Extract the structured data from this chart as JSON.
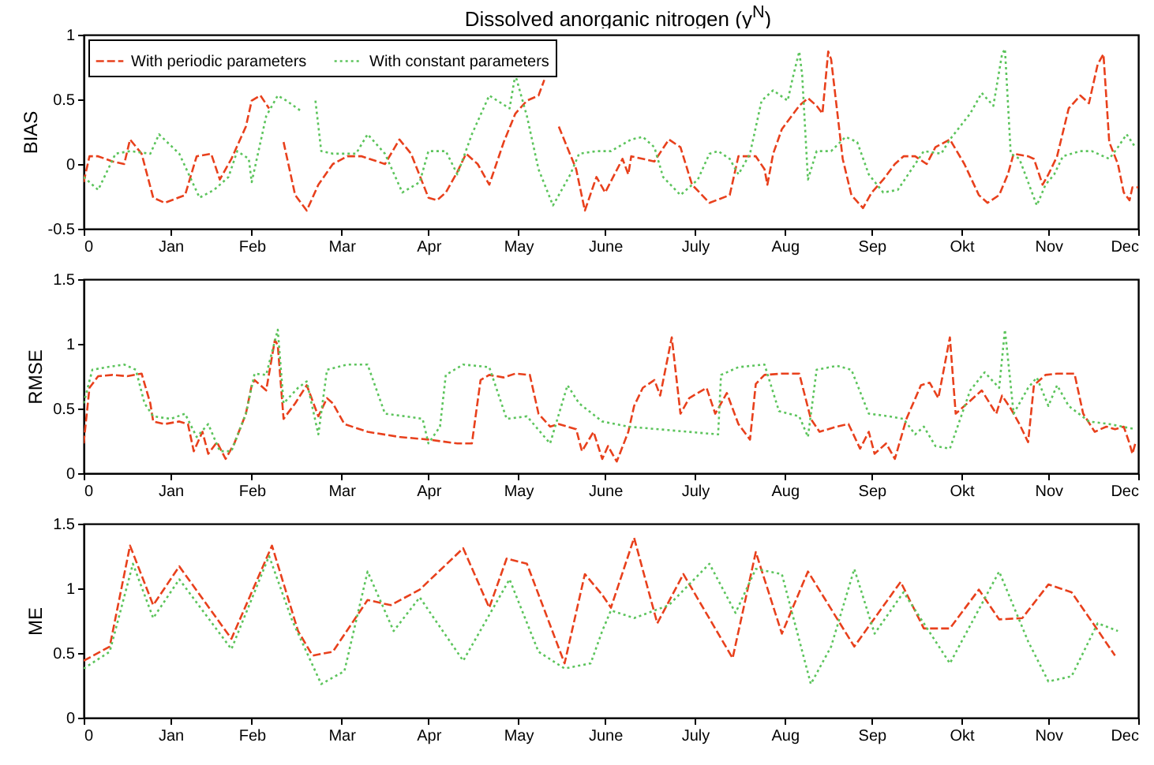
{
  "chart_data": [
    {
      "type": "line",
      "title": "Dissolved anorganic nitrogen (y$^{N}$)",
      "ylabel": "BIAS",
      "xlim": [
        "--01-01",
        "--12-31"
      ],
      "ylim": [
        -0.5,
        1
      ],
      "yticks": [
        -0.5,
        0,
        0.5,
        1
      ],
      "xticks": [
        {
          "value": "--01-01",
          "label": "0"
        },
        {
          "value": "--01-31",
          "label": "Jan"
        },
        {
          "value": "--02-28",
          "label": "Feb"
        },
        {
          "value": "--03-31",
          "label": "Mar"
        },
        {
          "value": "--04-30",
          "label": "Apr"
        },
        {
          "value": "--05-31",
          "label": "May"
        },
        {
          "value": "--06-30",
          "label": "June"
        },
        {
          "value": "--07-31",
          "label": "July"
        },
        {
          "value": "--08-31",
          "label": "Aug"
        },
        {
          "value": "--09-30",
          "label": "Sep"
        },
        {
          "value": "--10-31",
          "label": "Okt"
        },
        {
          "value": "--11-30",
          "label": "Nov"
        },
        {
          "value": "--12-31",
          "label": "Dec"
        }
      ],
      "legend": "top left",
      "series": [
        {
          "name": "With periodic parameters",
          "color": "#e8401c",
          "line_style": "dashed",
          "x": [
            "--01-01",
            "--01-03",
            "--01-06",
            "--01-11",
            "--01-15",
            "--01-17",
            "--01-21",
            "--01-25",
            "--01-29",
            "--02-05",
            "--02-09",
            "--02-14",
            "--02-17",
            "--02-21",
            "--02-26",
            "--02-28",
            "--03-03",
            "--03-06",
            "--03-08",
            "--03-09",
            "--03-11",
            "--03-15",
            "--03-19",
            "--03-23",
            "--03-28",
            "--04-02",
            "--04-07",
            "--04-15",
            "--04-20",
            "--04-24",
            "--04-30",
            "--05-03",
            "--05-06",
            "--05-10",
            "--05-13",
            "--05-17",
            "--05-21",
            "--05-26",
            "--05-30",
            "--06-03",
            "--06-07",
            "--06-09",
            "--06-12",
            "--06-14",
            "--06-20",
            "--06-23",
            "--06-27",
            "--06-30",
            "--07-06",
            "--07-08",
            "--07-09",
            "--07-17",
            "--07-22",
            "--07-26",
            "--07-30",
            "--08-05",
            "--08-12",
            "--08-15",
            "--08-21",
            "--08-24",
            "--08-25",
            "--08-27",
            "--08-30",
            "--09-05",
            "--09-08",
            "--09-11",
            "--09-13",
            "--09-15",
            "--09-16",
            "--09-20",
            "--09-23",
            "--09-27",
            "--09-30",
            "--10-04",
            "--10-08",
            "--10-11",
            "--10-15",
            "--10-19",
            "--10-22",
            "--10-27",
            "--11-01",
            "--11-06",
            "--11-09",
            "--11-13",
            "--11-16",
            "--11-18",
            "--11-23",
            "--11-25",
            "--11-28",
            "--11-30",
            "--12-03",
            "--12-07",
            "--12-11",
            "--12-14",
            "--12-17",
            "--12-19",
            "--12-21",
            "--12-24",
            "--12-26",
            "--12-28",
            "--12-29",
            "--12-31"
          ],
          "values": [
            -0.14,
            0.06,
            0.06,
            0.02,
            0,
            0.19,
            0.08,
            -0.26,
            -0.3,
            -0.24,
            0.06,
            0.08,
            -0.12,
            0.04,
            0.29,
            0.49,
            0.53,
            0.43,
            null,
            null,
            0.17,
            -0.24,
            -0.36,
            -0.16,
            0,
            0.06,
            0.06,
            0,
            0.19,
            0.08,
            -0.26,
            -0.28,
            -0.22,
            -0.06,
            0.08,
            0,
            -0.16,
            0.17,
            0.39,
            0.49,
            0.53,
            0.65,
            null,
            0.29,
            -0.04,
            -0.36,
            -0.1,
            -0.22,
            0.04,
            -0.08,
            0.06,
            0.02,
            0.19,
            0.13,
            -0.16,
            -0.3,
            -0.24,
            0.06,
            0.06,
            -0.04,
            -0.16,
            0.08,
            0.27,
            0.45,
            0.51,
            0.45,
            0.39,
            0.87,
            0.81,
            0.04,
            -0.24,
            -0.34,
            -0.22,
            -0.12,
            0,
            0.06,
            0.06,
            0,
            0.13,
            0.19,
            0,
            -0.24,
            -0.3,
            -0.24,
            -0.08,
            0.08,
            0.06,
            0.04,
            -0.16,
            -0.08,
            0.06,
            0.43,
            0.53,
            0.47,
            0.77,
            0.85,
            0.17,
            0,
            -0.22,
            -0.28,
            -0.18,
            -0.18
          ]
        },
        {
          "name": "With constant parameters",
          "color": "#5cc45c",
          "line_style": "dotted",
          "x": [
            "--01-01",
            "--01-06",
            "--01-12",
            "--01-17",
            "--01-24",
            "--01-27",
            "--02-03",
            "--02-10",
            "--02-15",
            "--02-20",
            "--02-23",
            "--02-27",
            "--02-28",
            "--03-05",
            "--03-09",
            "--03-12",
            "--03-17",
            "--03-20",
            "--03-22",
            "--03-24",
            "--03-28",
            "--04-05",
            "--04-09",
            "--04-15",
            "--04-21",
            "--04-27",
            "--04-30",
            "--05-06",
            "--05-10",
            "--05-15",
            "--05-21",
            "--05-28",
            "--05-30",
            "--06-03",
            "--06-07",
            "--06-12",
            "--06-18",
            "--06-21",
            "--06-27",
            "--07-02",
            "--07-09",
            "--07-13",
            "--07-17",
            "--07-20",
            "--07-26",
            "--08-01",
            "--08-05",
            "--08-08",
            "--08-12",
            "--08-15",
            "--08-19",
            "--08-23",
            "--08-27",
            "--09-01",
            "--09-03",
            "--09-05",
            "--09-06",
            "--09-08",
            "--09-11",
            "--09-16",
            "--09-21",
            "--09-25",
            "--09-29",
            "--10-04",
            "--10-09",
            "--10-15",
            "--10-18",
            "--10-24",
            "--10-27",
            "--11-03",
            "--11-07",
            "--11-11",
            "--11-14",
            "--11-15",
            "--11-17",
            "--11-20",
            "--11-24",
            "--11-26",
            "--11-29",
            "--12-02",
            "--12-05",
            "--12-11",
            "--12-15",
            "--12-21",
            "--12-24",
            "--12-27",
            "--12-30"
          ],
          "values": [
            -0.1,
            -0.2,
            0.08,
            0.1,
            0.08,
            0.23,
            0.08,
            -0.26,
            -0.2,
            -0.1,
            0.1,
            0.04,
            -0.14,
            0.37,
            0.53,
            0.49,
            0.41,
            null,
            0.49,
            0.1,
            0.08,
            0.08,
            0.23,
            0.08,
            -0.22,
            -0.14,
            0.1,
            0.1,
            -0.08,
            0.23,
            0.53,
            0.43,
            0.69,
            0.37,
            -0.04,
            -0.32,
            -0.08,
            0.08,
            0.1,
            0.1,
            0.19,
            0.21,
            0.13,
            -0.1,
            -0.24,
            -0.12,
            0.08,
            0.1,
            0.04,
            -0.08,
            0.08,
            0.49,
            0.57,
            0.49,
            0.69,
            0.87,
            0.69,
            -0.12,
            0.1,
            0.1,
            0.21,
            0.17,
            -0.08,
            -0.22,
            -0.2,
            0,
            0.1,
            0.08,
            0.19,
            0.39,
            0.55,
            0.45,
            0.85,
            0.89,
            0.08,
            0.04,
            -0.2,
            -0.32,
            -0.16,
            -0.08,
            0.06,
            0.1,
            0.1,
            0.04,
            0.13,
            0.23,
            0.13
          ]
        }
      ]
    },
    {
      "type": "line",
      "ylabel": "RMSE",
      "xlim": [
        "--01-01",
        "--12-31"
      ],
      "ylim": [
        0,
        1.5
      ],
      "yticks": [
        0,
        0.5,
        1,
        1.5
      ],
      "xticks": [
        {
          "value": "--01-01",
          "label": "0"
        },
        {
          "value": "--01-31",
          "label": "Jan"
        },
        {
          "value": "--02-28",
          "label": "Feb"
        },
        {
          "value": "--03-31",
          "label": "Mar"
        },
        {
          "value": "--04-30",
          "label": "Apr"
        },
        {
          "value": "--05-31",
          "label": "May"
        },
        {
          "value": "--06-30",
          "label": "June"
        },
        {
          "value": "--07-31",
          "label": "July"
        },
        {
          "value": "--08-31",
          "label": "Aug"
        },
        {
          "value": "--09-30",
          "label": "Sep"
        },
        {
          "value": "--10-31",
          "label": "Okt"
        },
        {
          "value": "--11-30",
          "label": "Nov"
        },
        {
          "value": "--12-31",
          "label": "Dec"
        }
      ],
      "series": [
        {
          "color": "#e8401c",
          "line_style": "dashed",
          "x": [
            "--01-01",
            "--01-03",
            "--01-06",
            "--01-11",
            "--01-16",
            "--01-21",
            "--01-24",
            "--01-25",
            "--01-29",
            "--02-03",
            "--02-06",
            "--02-08",
            "--02-11",
            "--02-13",
            "--02-16",
            "--02-19",
            "--02-22",
            "--02-26",
            "--02-28",
            "--03-01",
            "--03-05",
            "--03-08",
            "--03-09",
            "--03-11",
            "--03-15",
            "--03-19",
            "--03-23",
            "--03-26",
            "--03-28",
            "--04-01",
            "--04-09",
            "--04-20",
            "--04-30",
            "--05-10",
            "--05-15",
            "--05-18",
            "--05-21",
            "--05-26",
            "--05-30",
            "--06-04",
            "--06-07",
            "--06-11",
            "--06-14",
            "--06-20",
            "--06-22",
            "--06-26",
            "--06-29",
            "--07-01",
            "--07-04",
            "--07-08",
            "--07-10",
            "--07-13",
            "--07-17",
            "--07-19",
            "--07-23",
            "--07-26",
            "--07-29",
            "--08-04",
            "--08-07",
            "--08-11",
            "--08-15",
            "--08-19",
            "--08-21",
            "--08-24",
            "--08-30",
            "--09-05",
            "--09-09",
            "--09-12",
            "--09-18",
            "--09-22",
            "--09-26",
            "--09-29",
            "--10-01",
            "--10-05",
            "--10-08",
            "--10-12",
            "--10-17",
            "--10-20",
            "--10-23",
            "--10-27",
            "--10-29",
            "--11-03",
            "--11-07",
            "--11-12",
            "--11-14",
            "--11-17",
            "--11-20",
            "--11-23",
            "--11-25",
            "--11-29",
            "--12-03",
            "--12-09",
            "--12-12",
            "--12-16",
            "--12-20",
            "--12-23",
            "--12-26",
            "--12-28",
            "--12-29",
            "--12-30"
          ],
          "values": [
            0.23,
            0.66,
            0.75,
            0.76,
            0.75,
            0.77,
            0.54,
            0.4,
            0.38,
            0.4,
            0.38,
            0.17,
            0.32,
            0.15,
            0.24,
            0.11,
            0.23,
            0.46,
            0.68,
            0.72,
            0.64,
            1.03,
            0.99,
            0.42,
            0.54,
            0.68,
            0.44,
            0.58,
            0.54,
            0.38,
            0.32,
            0.28,
            0.26,
            0.23,
            0.23,
            0.72,
            0.76,
            0.74,
            0.77,
            0.76,
            0.46,
            0.36,
            0.38,
            0.34,
            0.17,
            0.32,
            0.11,
            0.21,
            0.09,
            0.32,
            0.52,
            0.66,
            0.72,
            0.6,
            1.05,
            0.46,
            0.58,
            0.66,
            0.46,
            0.62,
            0.38,
            0.26,
            0.69,
            0.76,
            0.77,
            0.77,
            0.42,
            0.32,
            0.36,
            0.38,
            0.19,
            0.32,
            0.15,
            0.23,
            0.11,
            0.42,
            0.68,
            0.7,
            0.58,
            1.05,
            0.46,
            0.56,
            0.64,
            0.46,
            0.6,
            0.5,
            0.38,
            0.24,
            0.68,
            0.76,
            0.77,
            0.77,
            0.46,
            0.32,
            0.36,
            0.34,
            0.36,
            0.23,
            0.15,
            0.23
          ]
        },
        {
          "color": "#5cc45c",
          "line_style": "dotted",
          "x": [
            "--01-01",
            "--01-04",
            "--01-09",
            "--01-15",
            "--01-19",
            "--01-22",
            "--01-25",
            "--01-31",
            "--02-05",
            "--02-09",
            "--02-13",
            "--02-17",
            "--02-21",
            "--02-26",
            "--03-01",
            "--03-05",
            "--03-09",
            "--03-11",
            "--03-16",
            "--03-19",
            "--03-23",
            "--03-26",
            "--04-02",
            "--04-09",
            "--04-15",
            "--04-22",
            "--04-28",
            "--04-30",
            "--05-04",
            "--05-06",
            "--05-12",
            "--05-21",
            "--05-27",
            "--06-03",
            "--06-11",
            "--06-17",
            "--06-21",
            "--06-29",
            "--07-08",
            "--08-08",
            "--08-09",
            "--08-15",
            "--08-24",
            "--08-29",
            "--09-05",
            "--09-08",
            "--09-11",
            "--09-18",
            "--09-23",
            "--09-29",
            "--10-06",
            "--10-11",
            "--10-15",
            "--10-18",
            "--10-22",
            "--10-27",
            "--11-03",
            "--11-08",
            "--11-13",
            "--11-15",
            "--11-18",
            "--11-23",
            "--11-26",
            "--11-30",
            "--12-03",
            "--12-07",
            "--12-14",
            "--12-21",
            "--12-30"
          ],
          "values": [
            0.54,
            0.8,
            0.82,
            0.84,
            0.8,
            0.54,
            0.44,
            0.42,
            0.46,
            0.28,
            0.38,
            0.17,
            0.17,
            0.46,
            0.77,
            0.76,
            1.11,
            0.54,
            0.66,
            0.71,
            0.3,
            0.8,
            0.84,
            0.84,
            0.46,
            0.44,
            0.42,
            0.23,
            0.36,
            0.76,
            0.84,
            0.82,
            0.42,
            0.44,
            0.23,
            0.68,
            0.54,
            0.4,
            0.36,
            0.3,
            0.76,
            0.82,
            0.84,
            0.48,
            0.44,
            0.28,
            0.8,
            0.83,
            0.8,
            0.46,
            0.44,
            0.42,
            0.3,
            0.36,
            0.21,
            0.19,
            0.64,
            0.78,
            0.66,
            1.11,
            0.46,
            0.66,
            0.74,
            0.52,
            0.68,
            0.52,
            0.4,
            0.38,
            0.34
          ]
        }
      ]
    },
    {
      "type": "line",
      "ylabel": "ME",
      "xlim": [
        "--01-01",
        "--12-31"
      ],
      "ylim": [
        0,
        1.5
      ],
      "yticks": [
        0,
        0.5,
        1,
        1.5
      ],
      "xticks": [
        {
          "value": "--01-01",
          "label": "0"
        },
        {
          "value": "--01-31",
          "label": "Jan"
        },
        {
          "value": "--02-28",
          "label": "Feb"
        },
        {
          "value": "--03-31",
          "label": "Mar"
        },
        {
          "value": "--04-30",
          "label": "Apr"
        },
        {
          "value": "--05-31",
          "label": "May"
        },
        {
          "value": "--06-30",
          "label": "June"
        },
        {
          "value": "--07-31",
          "label": "July"
        },
        {
          "value": "--08-31",
          "label": "Aug"
        },
        {
          "value": "--09-30",
          "label": "Sep"
        },
        {
          "value": "--10-31",
          "label": "Okt"
        },
        {
          "value": "--11-30",
          "label": "Nov"
        },
        {
          "value": "--12-31",
          "label": "Dec"
        }
      ],
      "series": [
        {
          "color": "#e8401c",
          "line_style": "dashed",
          "x": [
            "--01-01",
            "--01-10",
            "--01-17",
            "--01-25",
            "--02-03",
            "--02-21",
            "--03-07",
            "--03-16",
            "--03-21",
            "--03-28",
            "--04-09",
            "--04-17",
            "--04-27",
            "--05-12",
            "--05-21",
            "--05-27",
            "--06-03",
            "--06-16",
            "--06-23",
            "--06-29",
            "--07-02",
            "--07-10",
            "--07-18",
            "--07-27",
            "--08-13",
            "--08-21",
            "--08-30",
            "--09-08",
            "--09-24",
            "--10-10",
            "--10-18",
            "--10-27",
            "--11-06",
            "--11-13",
            "--11-21",
            "--11-30",
            "--12-08",
            "--12-16",
            "--12-23"
          ],
          "values": [
            0.44,
            0.55,
            1.33,
            0.87,
            1.17,
            0.61,
            1.33,
            0.67,
            0.48,
            0.51,
            0.91,
            0.87,
            0.99,
            1.31,
            0.85,
            1.23,
            1.19,
            0.42,
            1.11,
            0.95,
            0.85,
            1.39,
            0.73,
            1.11,
            0.46,
            1.28,
            0.65,
            1.13,
            0.55,
            1.05,
            0.69,
            0.69,
            0.99,
            0.76,
            0.77,
            1.03,
            0.97,
            0.71,
            0.48
          ]
        },
        {
          "color": "#5cc45c",
          "line_style": "dotted",
          "x": [
            "--01-01",
            "--01-10",
            "--01-18",
            "--01-25",
            "--02-03",
            "--02-21",
            "--03-06",
            "--03-14",
            "--03-24",
            "--04-01",
            "--04-09",
            "--04-18",
            "--04-27",
            "--05-12",
            "--05-28",
            "--06-07",
            "--06-16",
            "--06-25",
            "--06-29",
            "--07-02",
            "--07-10",
            "--07-22",
            "--08-05",
            "--08-14",
            "--08-21",
            "--08-30",
            "--09-09",
            "--09-16",
            "--09-24",
            "--10-01",
            "--10-11",
            "--10-27",
            "--11-13",
            "--11-23",
            "--11-30",
            "--12-08",
            "--12-17",
            "--12-24"
          ],
          "values": [
            0.38,
            0.51,
            1.19,
            0.77,
            1.07,
            0.53,
            1.25,
            0.75,
            0.26,
            0.36,
            1.13,
            0.67,
            0.93,
            0.44,
            1.07,
            0.51,
            0.38,
            0.42,
            0.67,
            0.83,
            0.77,
            0.87,
            1.19,
            0.81,
            1.15,
            1.11,
            0.26,
            0.55,
            1.15,
            0.65,
            0.97,
            0.42,
            1.13,
            0.59,
            0.28,
            0.32,
            0.73,
            0.67
          ]
        }
      ]
    }
  ]
}
